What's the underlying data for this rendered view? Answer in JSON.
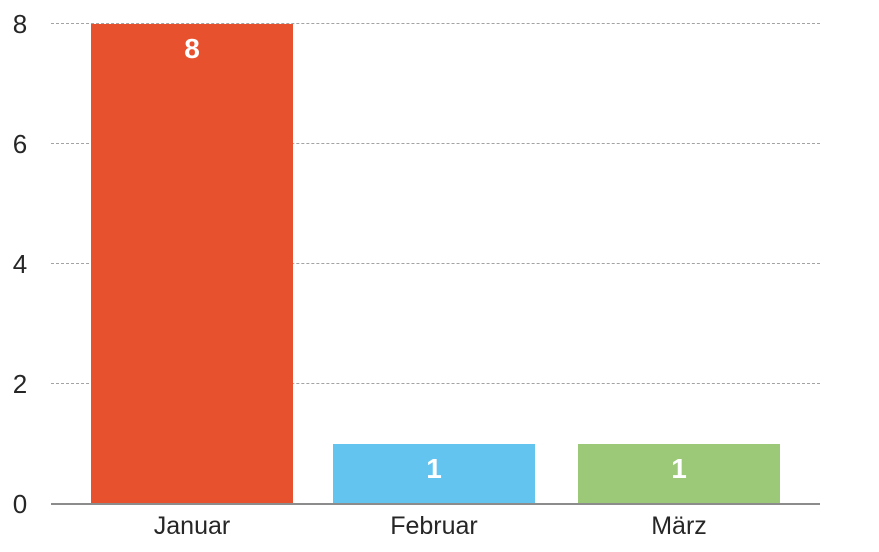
{
  "chart_data": {
    "type": "bar",
    "title": "",
    "xlabel": "",
    "ylabel": "",
    "categories": [
      "Januar",
      "Februar",
      "März"
    ],
    "values": [
      8,
      1,
      1
    ],
    "value_labels": [
      "8",
      "1",
      "1"
    ],
    "bar_colors": [
      "#e8512d",
      "#63c4ef",
      "#9cc977"
    ],
    "value_label_color": "#ffffff",
    "ytick_labels": [
      "0",
      "2",
      "4",
      "6",
      "8"
    ],
    "ytick_values": [
      0,
      2,
      4,
      6,
      8
    ],
    "ylim": [
      0,
      8
    ],
    "grid": "horizontal-dashed",
    "gridline_color": "#a3a3a3",
    "axis_line_color": "#8c8c8c",
    "axis_text_color": "#262626",
    "legend": "none"
  }
}
